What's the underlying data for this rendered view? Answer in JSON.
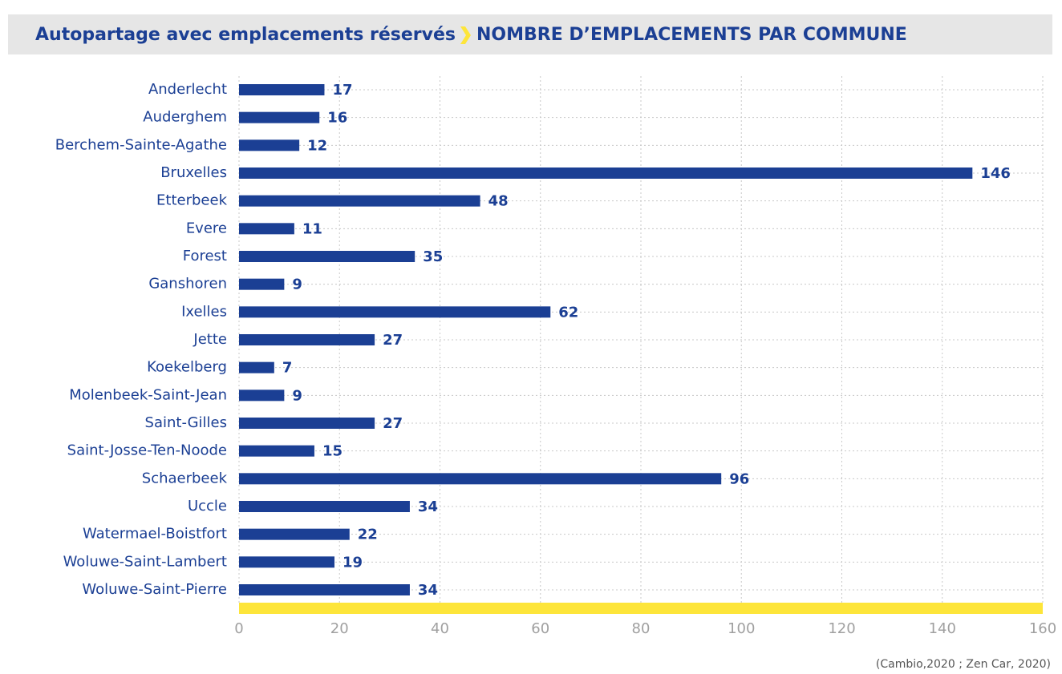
{
  "chart_data": {
    "type": "bar",
    "orientation": "horizontal",
    "title": "Autopartage avec emplacements réservés",
    "subtitle": "NOMBRE D’EMPLACEMENTS PAR COMMUNE",
    "categories": [
      "Anderlecht",
      "Auderghem",
      "Berchem-Sainte-Agathe",
      "Bruxelles",
      "Etterbeek",
      "Evere",
      "Forest",
      "Ganshoren",
      "Ixelles",
      "Jette",
      "Koekelberg",
      "Molenbeek-Saint-Jean",
      "Saint-Gilles",
      "Saint-Josse-Ten-Noode",
      "Schaerbeek",
      "Uccle",
      "Watermael-Boistfort",
      "Woluwe-Saint-Lambert",
      "Woluwe-Saint-Pierre"
    ],
    "values": [
      17,
      16,
      12,
      146,
      48,
      11,
      35,
      9,
      62,
      27,
      7,
      9,
      27,
      15,
      96,
      34,
      22,
      19,
      34
    ],
    "color": "#1b3f94",
    "xlim": [
      0,
      160
    ],
    "xticks": [
      0,
      20,
      40,
      60,
      80,
      100,
      120,
      140,
      160
    ],
    "grid": true,
    "source": "(Cambio,2020 ; Zen Car, 2020)"
  }
}
